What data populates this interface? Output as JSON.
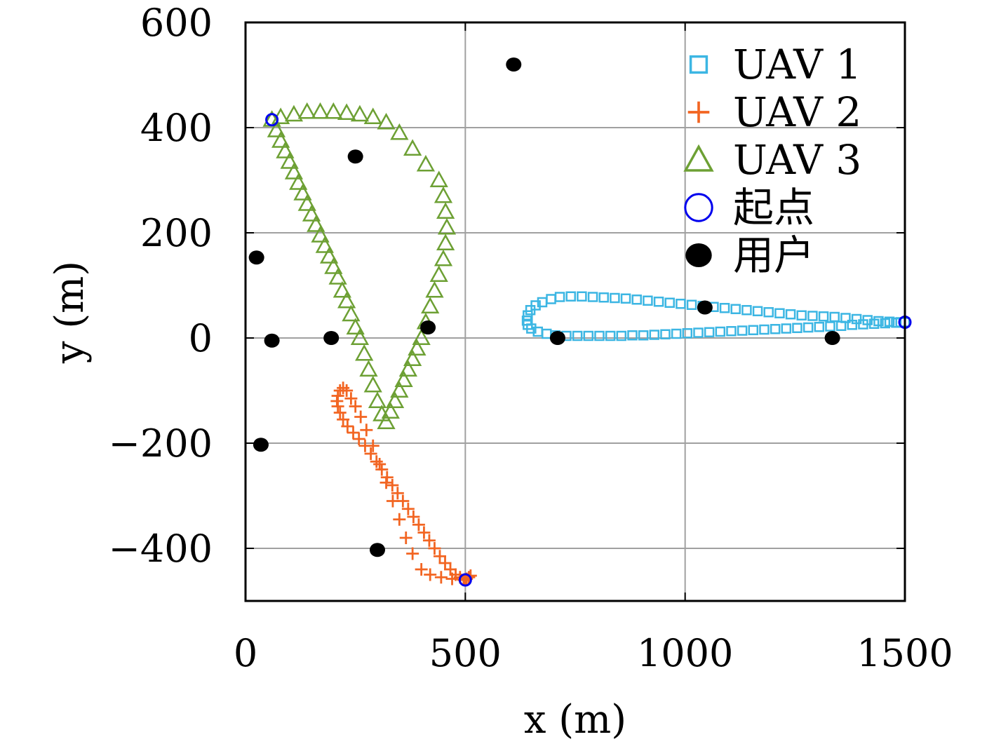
{
  "colors": {
    "uav1": "#3cb6e3",
    "uav2": "#f26522",
    "uav3": "#6da034",
    "start": "#0000ee",
    "user": "#000000",
    "grid": "#a0a0a0"
  },
  "chart_data": {
    "type": "scatter",
    "xlabel": "x (m)",
    "ylabel": "y (m)",
    "xlim": [
      0,
      1500
    ],
    "ylim": [
      -500,
      600
    ],
    "xticks": [
      0,
      500,
      1000,
      1500
    ],
    "yticks": [
      -400,
      -200,
      0,
      200,
      400,
      600
    ],
    "x_tick_labels": [
      "0",
      "500",
      "1000",
      "1500"
    ],
    "y_tick_labels": [
      "−400",
      "−200",
      "0",
      "200",
      "400",
      "600"
    ],
    "grid": true,
    "legend_position": "top-right",
    "series": [
      {
        "name": "UAV 1",
        "marker": "square",
        "color": "#3cb6e3",
        "x": [
          1500,
          1480,
          1455,
          1430,
          1405,
          1380,
          1355,
          1330,
          1305,
          1280,
          1255,
          1230,
          1205,
          1180,
          1155,
          1130,
          1105,
          1080,
          1055,
          1030,
          1005,
          980,
          955,
          930,
          905,
          880,
          855,
          830,
          805,
          780,
          755,
          730,
          705,
          685,
          665,
          650,
          642,
          640,
          642,
          648,
          660,
          675,
          695,
          715,
          740,
          765,
          790,
          815,
          840,
          865,
          890,
          915,
          940,
          965,
          990,
          1015,
          1040,
          1065,
          1090,
          1115,
          1140,
          1165,
          1190,
          1215,
          1240,
          1265,
          1290,
          1315,
          1340,
          1365,
          1390,
          1415,
          1440,
          1465,
          1490
        ],
        "y": [
          30,
          29,
          28,
          27,
          26,
          25,
          23,
          22,
          21,
          20,
          19,
          18,
          17,
          16,
          15,
          14,
          13,
          12,
          11,
          10,
          9,
          8,
          7,
          6,
          5,
          5,
          4,
          4,
          4,
          4,
          4,
          4,
          5,
          8,
          12,
          18,
          25,
          33,
          43,
          53,
          62,
          68,
          74,
          78,
          79,
          79,
          78,
          77,
          76,
          75,
          73,
          71,
          69,
          67,
          65,
          63,
          61,
          59,
          57,
          55,
          53,
          51,
          49,
          47,
          45,
          43,
          42,
          41,
          40,
          38,
          36,
          34,
          32,
          31,
          30
        ]
      },
      {
        "name": "UAV 2",
        "marker": "plus",
        "color": "#f26522",
        "x": [
          500,
          470,
          445,
          420,
          400,
          380,
          365,
          350,
          335,
          320,
          305,
          290,
          275,
          262,
          250,
          240,
          230,
          222,
          215,
          210,
          208,
          210,
          215,
          222,
          232,
          245,
          258,
          272,
          285,
          298,
          310,
          322,
          334,
          346,
          358,
          370,
          382,
          394,
          406,
          418,
          430,
          442,
          454,
          466,
          478,
          488,
          496,
          503,
          508,
          512
        ],
        "y": [
          -460,
          -458,
          -455,
          -450,
          -440,
          -410,
          -380,
          -345,
          -310,
          -275,
          -240,
          -205,
          -175,
          -150,
          -130,
          -115,
          -100,
          -95,
          -100,
          -110,
          -120,
          -130,
          -142,
          -155,
          -168,
          -180,
          -192,
          -205,
          -220,
          -235,
          -250,
          -265,
          -280,
          -295,
          -310,
          -325,
          -340,
          -355,
          -370,
          -385,
          -400,
          -415,
          -428,
          -440,
          -450,
          -455,
          -460,
          -458,
          -455,
          -452
        ]
      },
      {
        "name": "UAV 3",
        "marker": "triangle",
        "color": "#6da034",
        "x": [
          60,
          70,
          80,
          90,
          100,
          110,
          120,
          130,
          140,
          150,
          160,
          170,
          180,
          190,
          200,
          210,
          220,
          230,
          240,
          250,
          260,
          270,
          280,
          290,
          300,
          310,
          320,
          330,
          340,
          350,
          360,
          370,
          380,
          390,
          400,
          410,
          420,
          430,
          440,
          450,
          455,
          458,
          455,
          450,
          440,
          410,
          380,
          350,
          320,
          290,
          260,
          230,
          200,
          170,
          140,
          110,
          80
        ],
        "y": [
          415,
          395,
          375,
          355,
          335,
          315,
          295,
          275,
          255,
          235,
          215,
          195,
          175,
          155,
          135,
          115,
          90,
          70,
          45,
          20,
          0,
          -30,
          -60,
          -90,
          -120,
          -145,
          -160,
          -140,
          -120,
          -100,
          -80,
          -60,
          -40,
          -20,
          0,
          30,
          60,
          90,
          120,
          150,
          180,
          210,
          240,
          270,
          300,
          330,
          360,
          390,
          410,
          420,
          425,
          428,
          430,
          430,
          430,
          425,
          420
        ]
      },
      {
        "name": "起点",
        "marker": "circle-open",
        "color": "#0000ee",
        "x": [
          1500,
          500,
          60
        ],
        "y": [
          30,
          -460,
          415
        ]
      },
      {
        "name": "用户",
        "marker": "circle-filled",
        "color": "#000000",
        "x": [
          610,
          250,
          25,
          60,
          195,
          415,
          710,
          1045,
          1335,
          35,
          300
        ],
        "y": [
          520,
          345,
          153,
          -5,
          0,
          20,
          0,
          58,
          0,
          -203,
          -403
        ]
      }
    ]
  }
}
